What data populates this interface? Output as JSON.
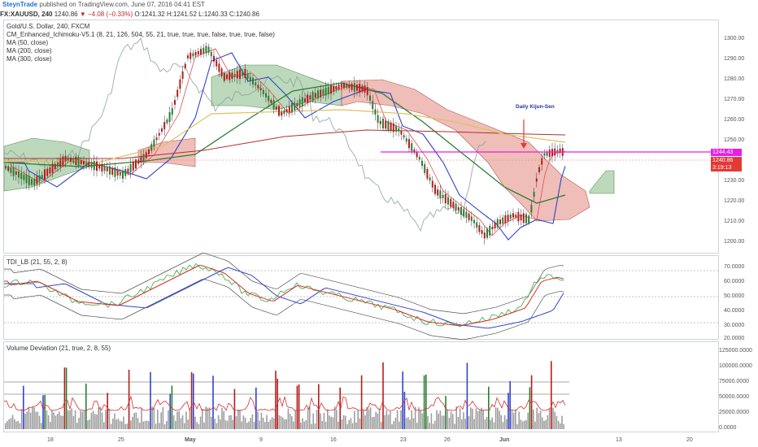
{
  "header": {
    "author": "SteynTrade",
    "published_text": "published on TradingView.com, June 07, 2016 04:41 EST"
  },
  "ticker": {
    "symbol": "FX:XAUUSD, 240",
    "last": "1240.86",
    "change": "▼ −4.08 (−0.33%)",
    "open": "O:1241.32",
    "high": "H:1241.52",
    "low": "L:1240.33",
    "close": "C:1240.86"
  },
  "main_pane": {
    "title": "Gold/U.S. Dollar, 240, FXCM",
    "indicators": [
      "CM_Enhanced_Ichimoku-V5.1 (8, 21, 126, 504, 55, 21, true, true, true, false, true, true, false)",
      "MA (50, close)",
      "MA (200, close)",
      "MA (300, close)"
    ],
    "annotation": "Daily Kijun-Sen",
    "y_axis": [
      "1300.00",
      "1290.00",
      "1280.00",
      "1270.00",
      "1260.00",
      "1250.00",
      "1230.00",
      "1220.00",
      "1210.00",
      "1200.00"
    ],
    "price_tags": [
      {
        "text": "1244.43",
        "color": "#e81ee8"
      },
      {
        "text": "1240.86",
        "color": "#e53935"
      },
      {
        "text": "3:19:13",
        "color": "#e53935"
      }
    ]
  },
  "tdi_pane": {
    "title": "TDI_LB (21, 55, 2, 8)",
    "y_axis": [
      "70.0000",
      "60.0000",
      "50.0000",
      "40.0000",
      "30.0000",
      "20.0000"
    ]
  },
  "volume_pane": {
    "title": "Volume Deviation (21, true, 2, 8, 55)",
    "y_axis": [
      "125000.0000",
      "100000.0000",
      "75000.0000",
      "50000.0000",
      "25000.0000",
      "0.0000"
    ]
  },
  "x_axis": [
    "18",
    "25",
    "May",
    "9",
    "16",
    "23",
    "26",
    "Jun",
    "13",
    "20"
  ],
  "colors": {
    "up_candle": "#2e7d32",
    "down_candle": "#b71c1c",
    "cloud_bull": "#8fbf8f",
    "cloud_bear": "#e8a29a",
    "kijun": "#3344cc",
    "tenkan": "#e05050",
    "chikou": "#8aa0a0",
    "ma50": "#2e7d32",
    "ma200": "#b03030",
    "ma300": "#e0c060",
    "support_line": "#e81ee8"
  }
}
